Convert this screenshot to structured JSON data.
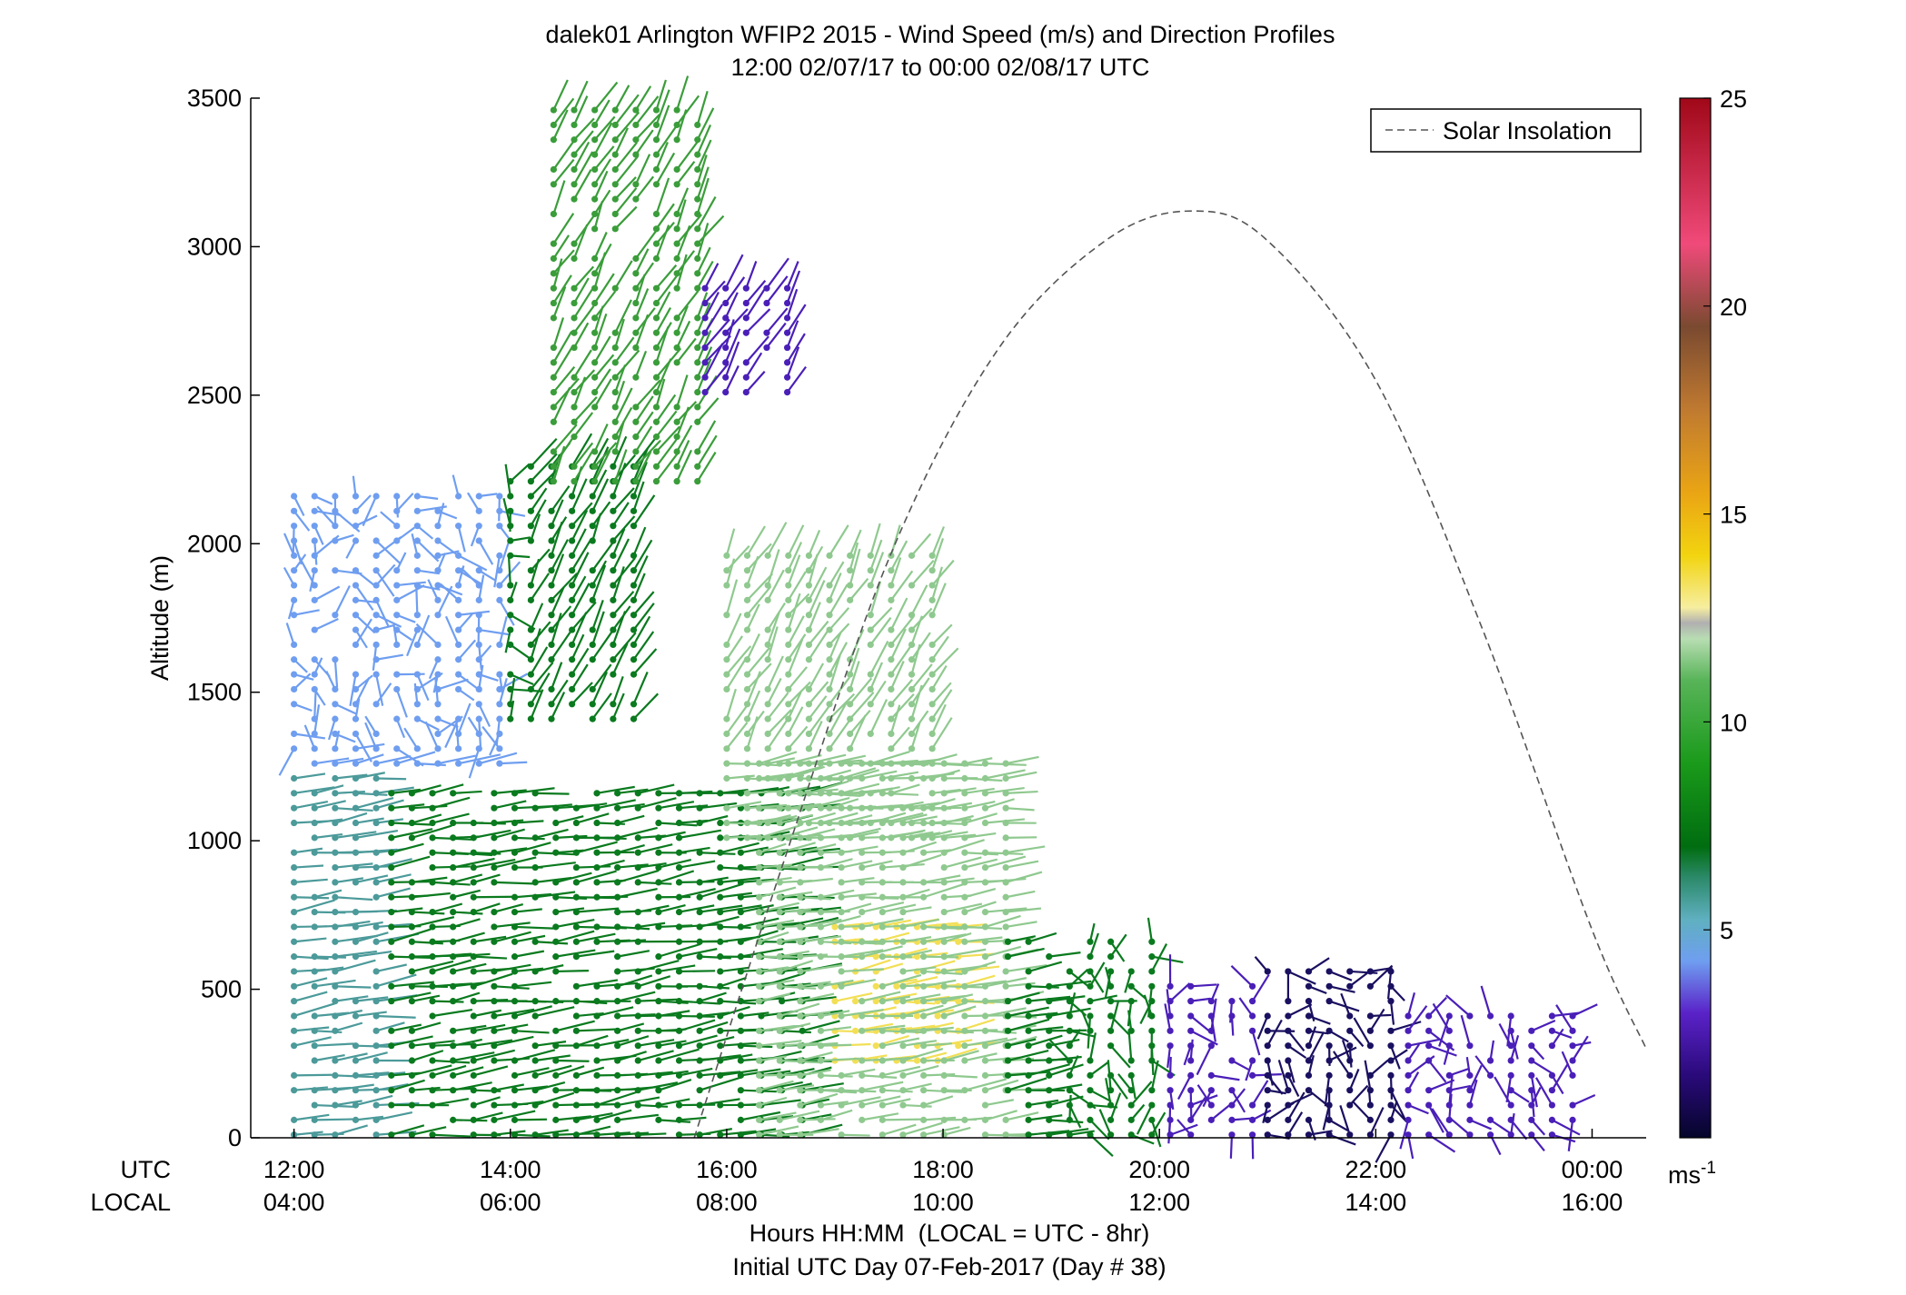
{
  "chart_data": {
    "type": "wind-barb-profile",
    "title": "dalek01 Arlington WFIP2 2015 - Wind Speed (m/s) and Direction Profiles",
    "subtitle": "12:00 02/07/17 to 00:00 02/08/17  UTC",
    "ylabel": "Altitude (m)",
    "ylim": [
      0,
      3500
    ],
    "yticks": [
      0,
      500,
      1000,
      1500,
      2000,
      2500,
      3000,
      3500
    ],
    "x_row_labels": [
      "UTC",
      "LOCAL"
    ],
    "utc_ticks": [
      "12:00",
      "14:00",
      "16:00",
      "18:00",
      "20:00",
      "22:00",
      "00:00"
    ],
    "local_ticks": [
      "04:00",
      "06:00",
      "08:00",
      "10:00",
      "12:00",
      "14:00",
      "16:00"
    ],
    "xlim_hours": [
      11.6,
      24.5
    ],
    "xlabel": "Hours HH:MM  (LOCAL = UTC - 8hr)",
    "xlabel2": "Initial UTC Day 07-Feb-2017 (Day # 38)",
    "legend": {
      "label": "Solar Insolation",
      "placement": "top-right"
    },
    "colorbar": {
      "unit_label": "ms",
      "unit_superscript": "-1",
      "range": [
        0,
        25
      ],
      "ticks": [
        "5",
        "10",
        "15",
        "20",
        "25"
      ]
    },
    "solar_insolation_curve": {
      "x_hours": [
        15.7,
        16.5,
        17.5,
        18.5,
        19.5,
        20.3,
        21.0,
        22.0,
        23.0,
        24.0,
        24.5
      ],
      "y_m": [
        0,
        900,
        1950,
        2650,
        3020,
        3120,
        3020,
        2550,
        1700,
        700,
        300
      ]
    },
    "colors": {
      "green_dark": "#0a7a1e",
      "green_mid": "#3a9d3a",
      "green_light": "#8fc98f",
      "blue": "#6f9ef0",
      "teal": "#4c9a9a",
      "purple": "#4a1fb8",
      "navy": "#1a1060",
      "yellow": "#f2df55",
      "orange": "#ecaa2a",
      "red": "#b8122a",
      "pink": "#f04a7a",
      "gray": "#b0b0b0"
    },
    "barb_regions": [
      {
        "x": [
          12.0,
          12.9
        ],
        "y": [
          0,
          1250
        ],
        "color": "teal"
      },
      {
        "x": [
          12.0,
          14.0
        ],
        "y": [
          1250,
          2200
        ],
        "color": "blue"
      },
      {
        "x": [
          12.9,
          16.8
        ],
        "y": [
          0,
          1200
        ],
        "color": "green_dark"
      },
      {
        "x": [
          14.0,
          15.2
        ],
        "y": [
          1400,
          2300
        ],
        "color": "green_dark"
      },
      {
        "x": [
          14.4,
          15.8
        ],
        "y": [
          2200,
          3470
        ],
        "color": "green_mid"
      },
      {
        "x": [
          15.8,
          16.6
        ],
        "y": [
          2500,
          2900
        ],
        "color": "purple"
      },
      {
        "x": [
          16.0,
          18.0
        ],
        "y": [
          1000,
          2000
        ],
        "color": "green_light"
      },
      {
        "x": [
          17.0,
          18.3
        ],
        "y": [
          250,
          750
        ],
        "color": "yellow"
      },
      {
        "x": [
          16.3,
          18.6
        ],
        "y": [
          0,
          1300
        ],
        "color": "green_light"
      },
      {
        "x": [
          18.6,
          20.1
        ],
        "y": [
          0,
          700
        ],
        "color": "green_dark"
      },
      {
        "x": [
          20.1,
          21.0
        ],
        "y": [
          0,
          550
        ],
        "color": "purple"
      },
      {
        "x": [
          21.0,
          22.3
        ],
        "y": [
          0,
          600
        ],
        "color": "navy"
      },
      {
        "x": [
          22.3,
          24.0
        ],
        "y": [
          0,
          450
        ],
        "color": "purple"
      }
    ]
  }
}
